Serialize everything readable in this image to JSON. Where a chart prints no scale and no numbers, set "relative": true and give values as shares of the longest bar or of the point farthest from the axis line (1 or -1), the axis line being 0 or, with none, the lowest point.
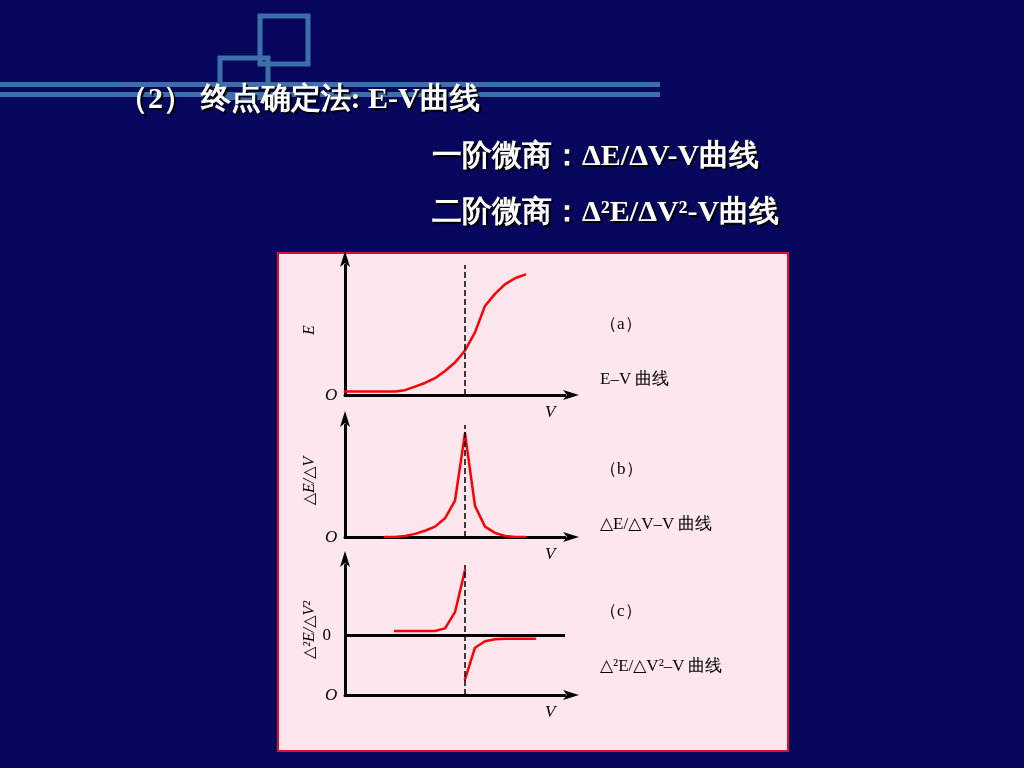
{
  "chart_data": [
    {
      "type": "line",
      "title": "（2） 终点确定法: E-V曲线",
      "subtitle": "一阶微商：ΔE/ΔV-V曲线",
      "xlabel": "V",
      "ylabel": "E",
      "relative": true,
      "categories": [
        null,
        null,
        null,
        null,
        null,
        null,
        null,
        null,
        null,
        null,
        null,
        null,
        null,
        null,
        null,
        null,
        null,
        null,
        null,
        null,
        null,
        null,
        null
      ],
      "series": [
        {
          "color": "#ff0000",
          "values": [
            0.03,
            0.03,
            0.03,
            0.03,
            0.03,
            0.03,
            0.04,
            0.07,
            0.1,
            0.14,
            0.2,
            0.27,
            0.37,
            0.52,
            0.74,
            0.84,
            0.92,
            0.97,
            1.0,
            null,
            null,
            null,
            null
          ]
        }
      ],
      "annotations": [
        "O",
        "（a）",
        "E–V 曲线",
        "二阶微商：Δ²E/ΔV²-V曲线"
      ]
    },
    {
      "type": "line",
      "xlabel": "V",
      "ylabel": "△E/△V",
      "relative": true,
      "categories": [
        null,
        null,
        null,
        null,
        null,
        null,
        null,
        null,
        null,
        null,
        null,
        null,
        null,
        null,
        null,
        null,
        null,
        null,
        null,
        null,
        null,
        null,
        null
      ],
      "series": [
        {
          "color": "#ff0000",
          "values": [
            null,
            null,
            null,
            null,
            0,
            0,
            0.01,
            0.03,
            0.06,
            0.1,
            0.18,
            0.35,
            1.0,
            0.3,
            0.1,
            0.04,
            0.01,
            0,
            0,
            null,
            null,
            null,
            null
          ]
        }
      ],
      "annotations": [
        "O",
        "（b）",
        "△E/△V–V 曲线"
      ]
    },
    {
      "type": "line",
      "xlabel": "V",
      "ylabel": "△²E/△V²",
      "relative": true,
      "categories": [
        null,
        null,
        null,
        null,
        null,
        null,
        null,
        null,
        null,
        null,
        null,
        null,
        null,
        null,
        null,
        null,
        null,
        null,
        null,
        null,
        null,
        null,
        null
      ],
      "series": [
        {
          "color": "#ff0000",
          "values": [
            null,
            null,
            null,
            null,
            null,
            0.06,
            0.06,
            0.06,
            0.06,
            0.06,
            0.1,
            0.35,
            1.0,
            null,
            null,
            null,
            null,
            null,
            null,
            null,
            null,
            null,
            null
          ]
        },
        {
          "color": "#ff0000",
          "values": [
            null,
            null,
            null,
            null,
            null,
            null,
            null,
            null,
            null,
            null,
            null,
            null,
            -0.69,
            -0.2,
            -0.1,
            -0.07,
            -0.06,
            -0.06,
            -0.06,
            -0.06,
            null,
            null,
            null
          ]
        }
      ],
      "ref_lines": [
        {
          "axis": "y",
          "value": 0,
          "label": "0",
          "color": "#000000",
          "line_style": "solid"
        }
      ],
      "annotations": [
        "O",
        "（c）",
        "△²E/△V²–V 曲线"
      ]
    }
  ]
}
